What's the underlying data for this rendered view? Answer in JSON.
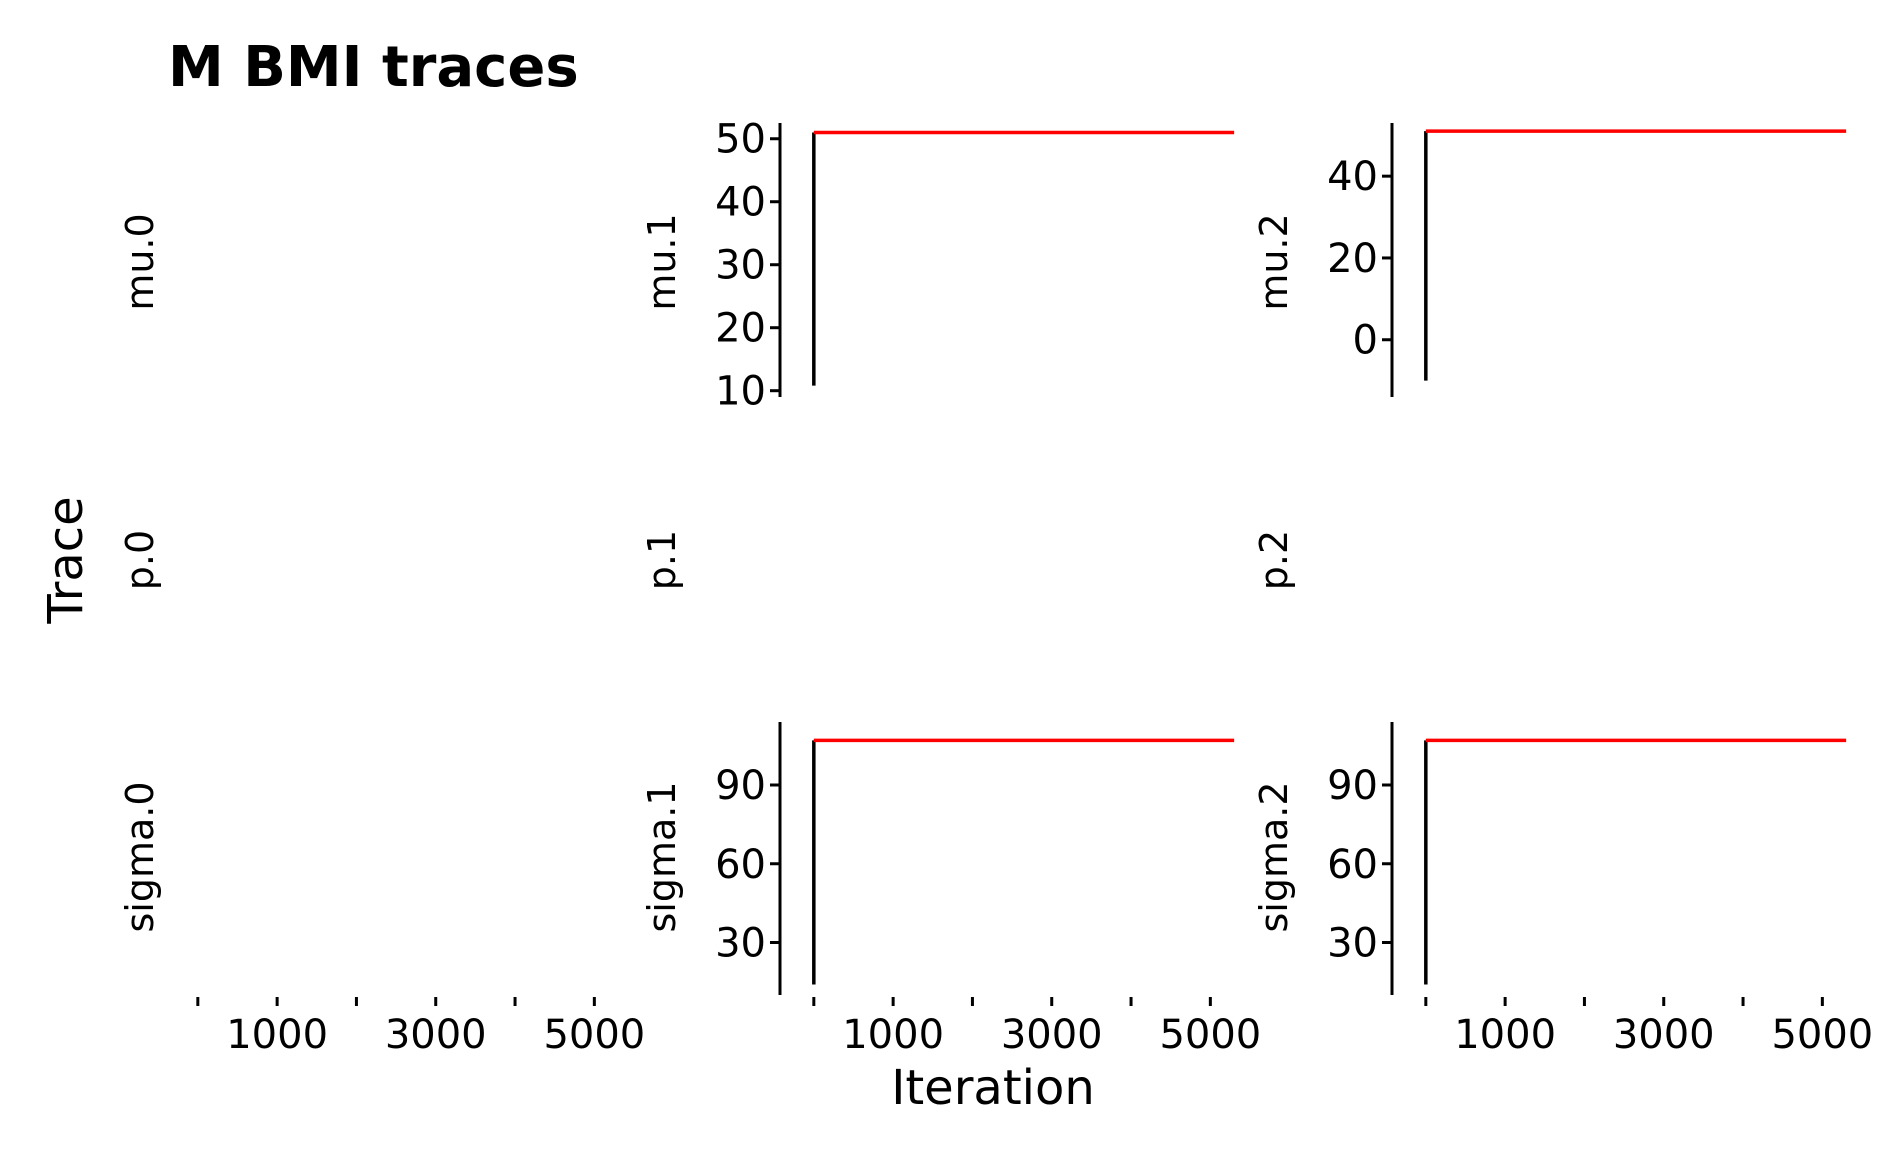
{
  "chart_data": {
    "type": "line",
    "title": "M BMI traces",
    "xlabel": "Iteration",
    "ylabel": "Trace",
    "grid": false,
    "layout": "3x3 facet grid",
    "x_tick_labels": [
      "1000",
      "3000",
      "5000"
    ],
    "x_ticks": [
      0,
      1000,
      2000,
      3000,
      4000,
      5000
    ],
    "xlim": [
      -250,
      5500
    ],
    "line_color": "#ff0000",
    "panels": [
      {
        "label": "mu.0",
        "row": 0,
        "col": 0,
        "empty": true
      },
      {
        "label": "mu.1",
        "row": 0,
        "col": 1,
        "ylim": [
          9,
          52.5
        ],
        "yticks": [
          10,
          20,
          30,
          40,
          50
        ],
        "trace_x": [
          0,
          5300
        ],
        "trace_y": [
          51,
          51
        ],
        "spike_x": 0,
        "spike_min": 10.8,
        "spike_max": 51
      },
      {
        "label": "mu.2",
        "row": 0,
        "col": 2,
        "ylim": [
          -14,
          53
        ],
        "yticks": [
          0,
          20,
          40
        ],
        "trace_x": [
          0,
          5300
        ],
        "trace_y": [
          51,
          51
        ],
        "spike_x": 0,
        "spike_min": -10,
        "spike_max": 51
      },
      {
        "label": "p.0",
        "row": 1,
        "col": 0,
        "empty": true
      },
      {
        "label": "p.1",
        "row": 1,
        "col": 1,
        "empty": true
      },
      {
        "label": "p.2",
        "row": 1,
        "col": 2,
        "empty": true
      },
      {
        "label": "sigma.0",
        "row": 2,
        "col": 0,
        "empty": true
      },
      {
        "label": "sigma.1",
        "row": 2,
        "col": 1,
        "ylim": [
          10,
          114
        ],
        "yticks": [
          30,
          60,
          90
        ],
        "trace_x": [
          0,
          5300
        ],
        "trace_y": [
          107,
          107
        ],
        "spike_x": 0,
        "spike_min": 14,
        "spike_max": 107
      },
      {
        "label": "sigma.2",
        "row": 2,
        "col": 2,
        "ylim": [
          10,
          114
        ],
        "yticks": [
          30,
          60,
          90
        ],
        "trace_x": [
          0,
          5300
        ],
        "trace_y": [
          107,
          107
        ],
        "spike_x": 0,
        "spike_min": 14,
        "spike_max": 107
      }
    ]
  }
}
